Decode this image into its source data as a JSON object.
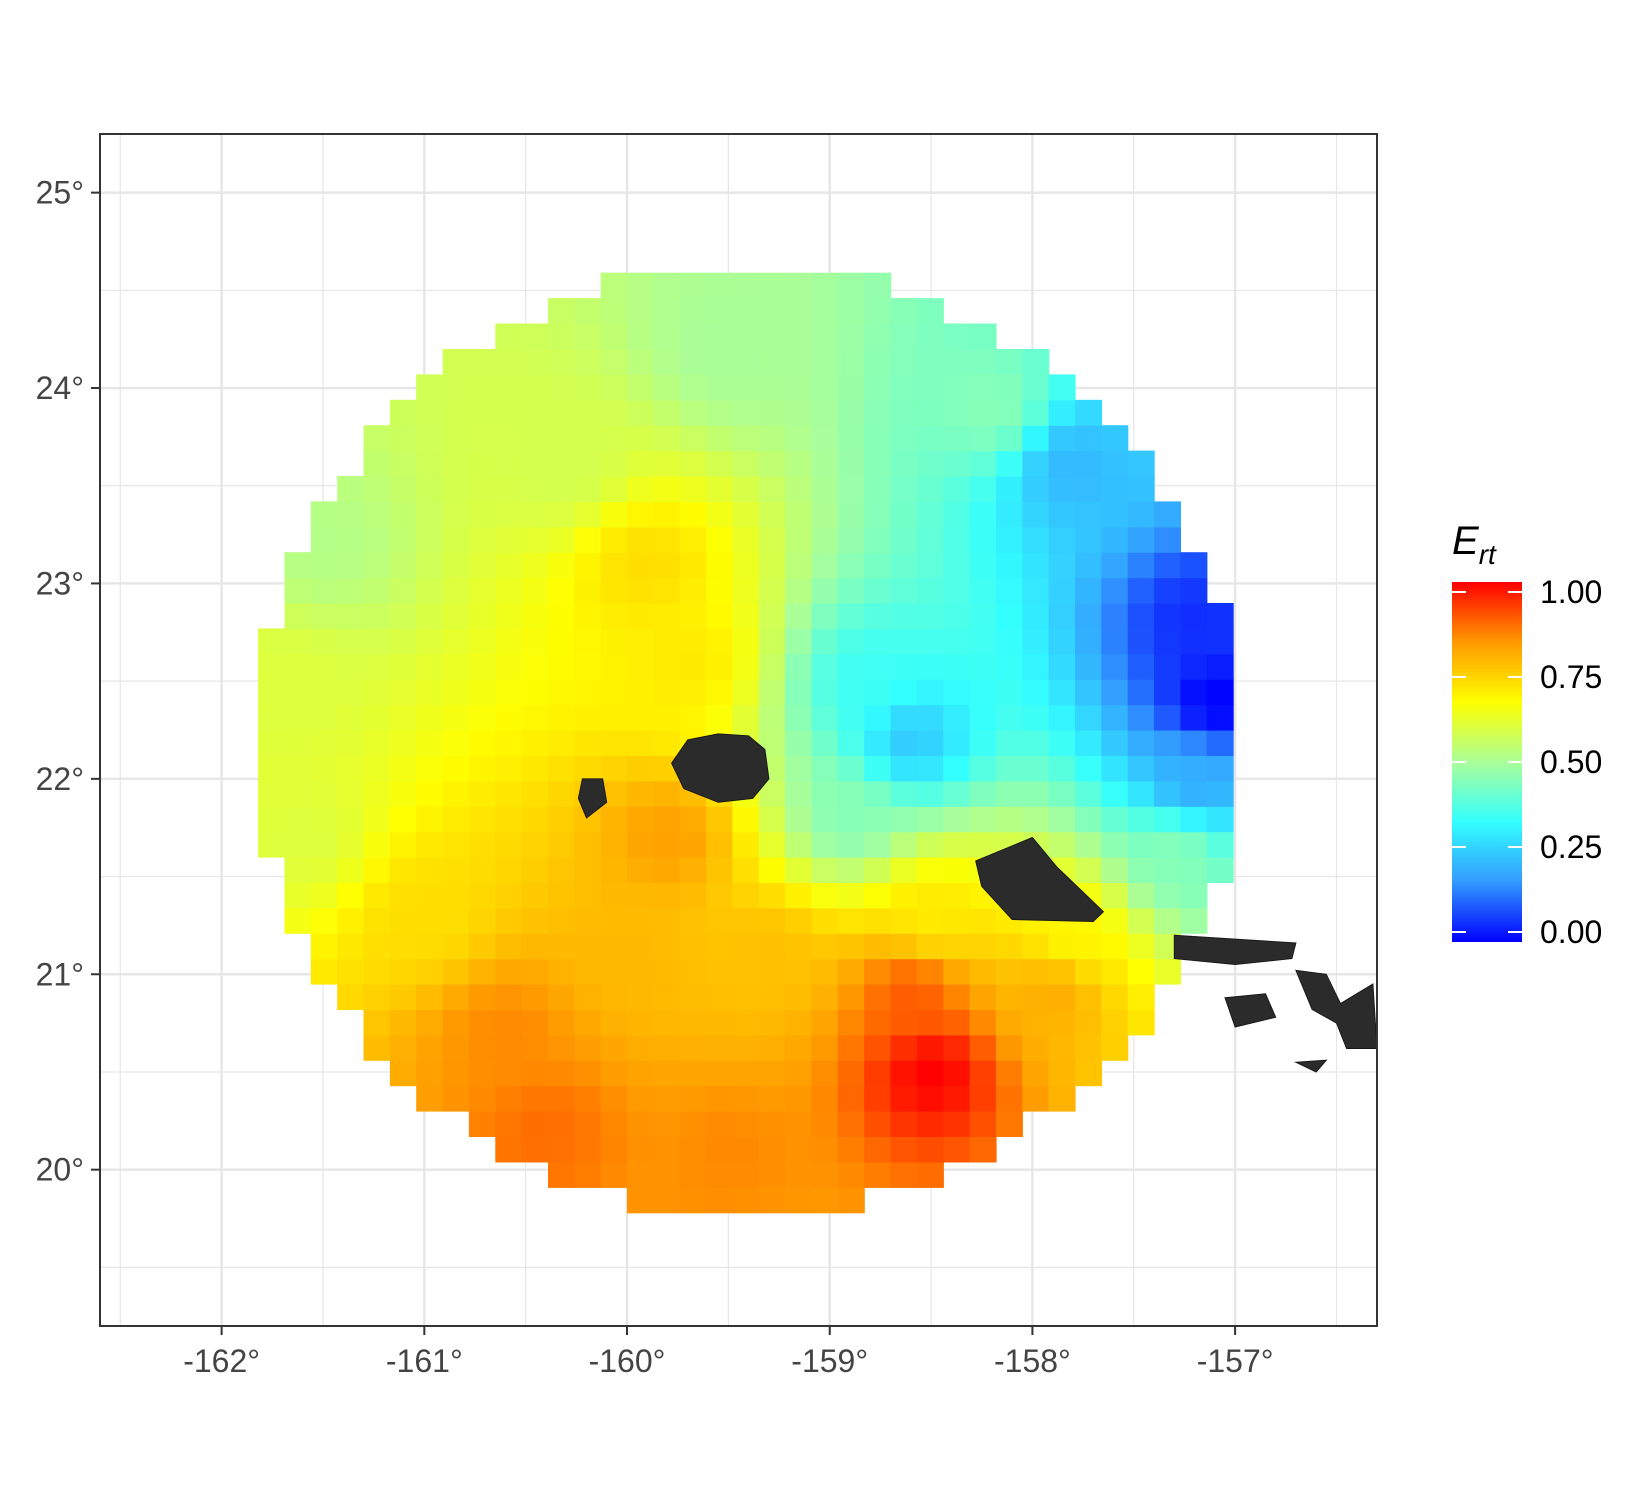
{
  "chart_data": {
    "type": "heatmap",
    "title": "",
    "xlabel": "",
    "ylabel": "",
    "xlim": [
      -162.6,
      -156.3
    ],
    "ylim": [
      19.2,
      25.3
    ],
    "grid": true,
    "x_ticks": [
      {
        "value": -162,
        "label": "-162°"
      },
      {
        "value": -161,
        "label": "-161°"
      },
      {
        "value": -160,
        "label": "-160°"
      },
      {
        "value": -159,
        "label": "-159°"
      },
      {
        "value": -158,
        "label": "-158°"
      },
      {
        "value": -157,
        "label": "-157°"
      }
    ],
    "y_ticks": [
      {
        "value": 20,
        "label": "20°"
      },
      {
        "value": 21,
        "label": "21°"
      },
      {
        "value": 22,
        "label": "22°"
      },
      {
        "value": 23,
        "label": "23°"
      },
      {
        "value": 24,
        "label": "24°"
      },
      {
        "value": 25,
        "label": "25°"
      }
    ],
    "field": {
      "description_of_values": "E_rt over a disk centered near (-159.4 lon, 22.2 lat), radius ~2.4 deg",
      "center": [
        -159.4,
        22.2
      ],
      "radius_deg": 2.42,
      "cell_deg": 0.13,
      "anchors": [
        {
          "lon": -160.3,
          "lat": 23.6,
          "v": 0.58
        },
        {
          "lon": -159.5,
          "lat": 24.2,
          "v": 0.5
        },
        {
          "lon": -161.5,
          "lat": 23.2,
          "v": 0.52
        },
        {
          "lon": -161.7,
          "lat": 22.5,
          "v": 0.6
        },
        {
          "lon": -161.6,
          "lat": 21.7,
          "v": 0.6
        },
        {
          "lon": -159.9,
          "lat": 23.1,
          "v": 0.72
        },
        {
          "lon": -159.7,
          "lat": 22.6,
          "v": 0.7
        },
        {
          "lon": -158.2,
          "lat": 23.9,
          "v": 0.45
        },
        {
          "lon": -157.8,
          "lat": 23.6,
          "v": 0.22
        },
        {
          "lon": -157.2,
          "lat": 22.8,
          "v": 0.05
        },
        {
          "lon": -157.1,
          "lat": 22.4,
          "v": 0.0
        },
        {
          "lon": -157.2,
          "lat": 22.0,
          "v": 0.2
        },
        {
          "lon": -157.3,
          "lat": 21.6,
          "v": 0.45
        },
        {
          "lon": -158.6,
          "lat": 22.2,
          "v": 0.25
        },
        {
          "lon": -158.8,
          "lat": 22.5,
          "v": 0.35
        },
        {
          "lon": -158.9,
          "lat": 21.8,
          "v": 0.45
        },
        {
          "lon": -161.0,
          "lat": 21.3,
          "v": 0.72
        },
        {
          "lon": -160.6,
          "lat": 20.7,
          "v": 0.85
        },
        {
          "lon": -160.0,
          "lat": 21.1,
          "v": 0.78
        },
        {
          "lon": -159.8,
          "lat": 21.7,
          "v": 0.82
        },
        {
          "lon": -159.3,
          "lat": 21.1,
          "v": 0.77
        },
        {
          "lon": -160.4,
          "lat": 20.2,
          "v": 0.88
        },
        {
          "lon": -159.5,
          "lat": 20.1,
          "v": 0.85
        },
        {
          "lon": -158.5,
          "lat": 20.5,
          "v": 1.0
        },
        {
          "lon": -158.6,
          "lat": 20.9,
          "v": 0.9
        },
        {
          "lon": -157.9,
          "lat": 20.9,
          "v": 0.8
        },
        {
          "lon": -157.8,
          "lat": 21.2,
          "v": 0.68
        },
        {
          "lon": -158.5,
          "lat": 21.3,
          "v": 0.7
        }
      ]
    },
    "islands": [
      {
        "name": "Kauai",
        "points": [
          [
            -159.78,
            22.08
          ],
          [
            -159.7,
            22.2
          ],
          [
            -159.55,
            22.23
          ],
          [
            -159.4,
            22.22
          ],
          [
            -159.32,
            22.15
          ],
          [
            -159.3,
            22.0
          ],
          [
            -159.38,
            21.9
          ],
          [
            -159.55,
            21.88
          ],
          [
            -159.72,
            21.95
          ]
        ]
      },
      {
        "name": "Niihau",
        "points": [
          [
            -160.22,
            22.0
          ],
          [
            -160.12,
            22.0
          ],
          [
            -160.1,
            21.88
          ],
          [
            -160.2,
            21.8
          ],
          [
            -160.24,
            21.9
          ]
        ]
      },
      {
        "name": "Oahu",
        "points": [
          [
            -158.28,
            21.58
          ],
          [
            -158.0,
            21.7
          ],
          [
            -157.88,
            21.55
          ],
          [
            -157.65,
            21.32
          ],
          [
            -157.7,
            21.27
          ],
          [
            -158.1,
            21.28
          ],
          [
            -158.25,
            21.45
          ]
        ]
      },
      {
        "name": "Molokai",
        "points": [
          [
            -157.3,
            21.2
          ],
          [
            -157.0,
            21.18
          ],
          [
            -156.7,
            21.16
          ],
          [
            -156.72,
            21.08
          ],
          [
            -157.0,
            21.05
          ],
          [
            -157.3,
            21.08
          ]
        ]
      },
      {
        "name": "Lanai",
        "points": [
          [
            -157.05,
            20.88
          ],
          [
            -156.85,
            20.9
          ],
          [
            -156.8,
            20.78
          ],
          [
            -157.0,
            20.73
          ]
        ]
      },
      {
        "name": "Maui",
        "points": [
          [
            -156.7,
            21.02
          ],
          [
            -156.55,
            21.0
          ],
          [
            -156.48,
            20.85
          ],
          [
            -156.32,
            20.95
          ],
          [
            -156.3,
            20.62
          ],
          [
            -156.45,
            20.62
          ],
          [
            -156.5,
            20.75
          ],
          [
            -156.62,
            20.82
          ]
        ]
      },
      {
        "name": "Kahoolawe",
        "points": [
          [
            -156.7,
            20.55
          ],
          [
            -156.55,
            20.56
          ],
          [
            -156.6,
            20.5
          ]
        ]
      }
    ],
    "legend": {
      "title": "E",
      "title_subscript": "rt",
      "placement": "right",
      "limits": [
        0,
        1
      ],
      "tick_values": [
        0.0,
        0.25,
        0.5,
        0.75,
        1.0
      ],
      "tick_labels": [
        "0.00",
        "0.25",
        "0.50",
        "0.75",
        "1.00"
      ],
      "colors": [
        "#0000ff",
        "#3399ff",
        "#33ffff",
        "#aaff99",
        "#ffff00",
        "#ff9900",
        "#ff0000"
      ]
    }
  }
}
